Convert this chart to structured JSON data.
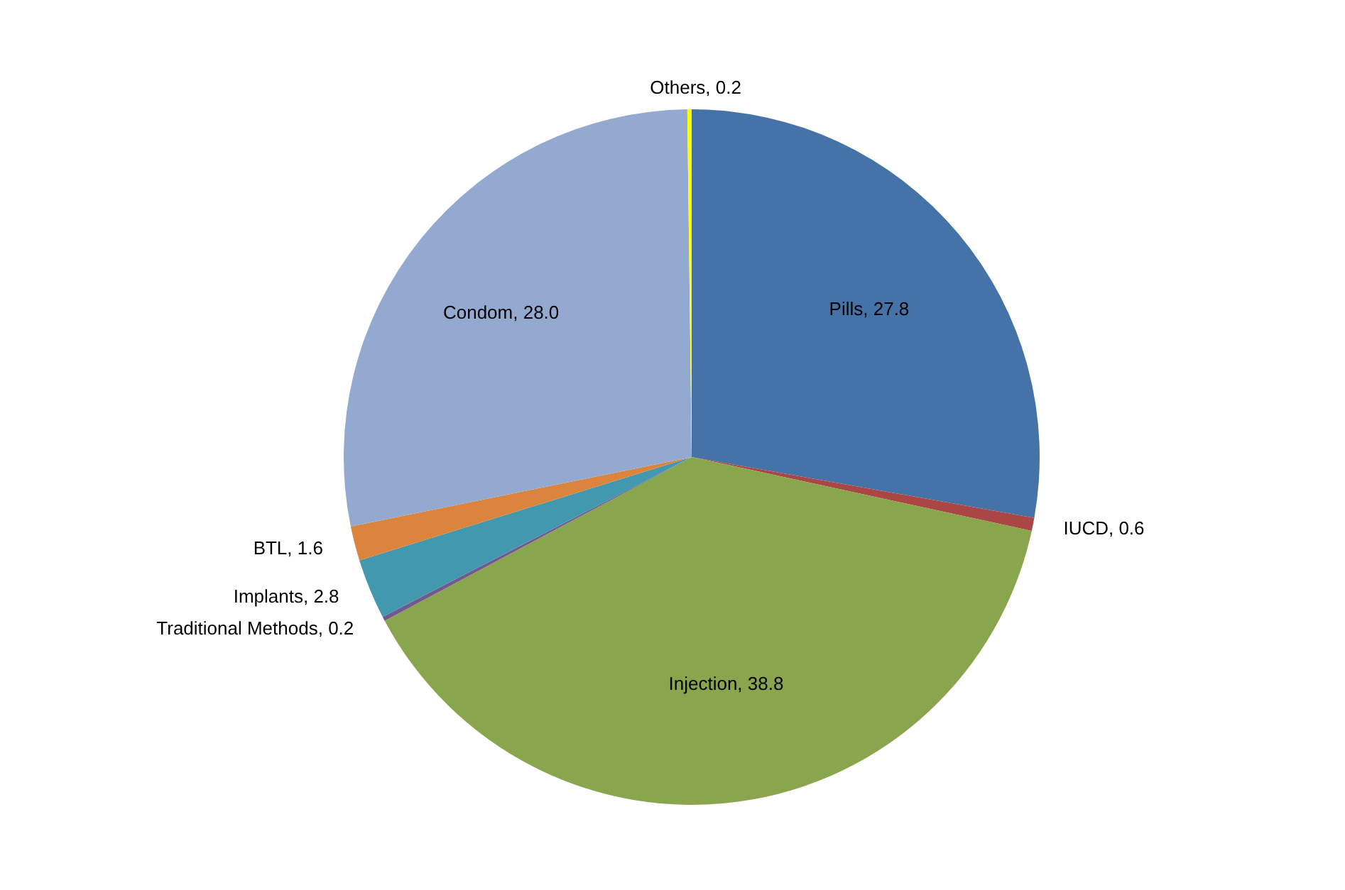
{
  "chart_data": {
    "type": "pie",
    "categories": [
      "Pills",
      "IUCD",
      "Injection",
      "Traditional Methods",
      "Implants",
      "BTL",
      "Condom",
      "Others"
    ],
    "values": [
      27.8,
      0.6,
      38.8,
      0.2,
      2.8,
      1.6,
      28.0,
      0.2
    ],
    "colors": [
      "#4572a7",
      "#aa4643",
      "#89a54e",
      "#71588f",
      "#4198af",
      "#db843d",
      "#93a9cf",
      "#ffff00"
    ],
    "value_labels": [
      ", 27.8",
      ", 0.6",
      ", 38.8",
      ", 0.2",
      ", 2.8",
      ", 1.6",
      ", 28.0",
      ", 0.2"
    ]
  }
}
